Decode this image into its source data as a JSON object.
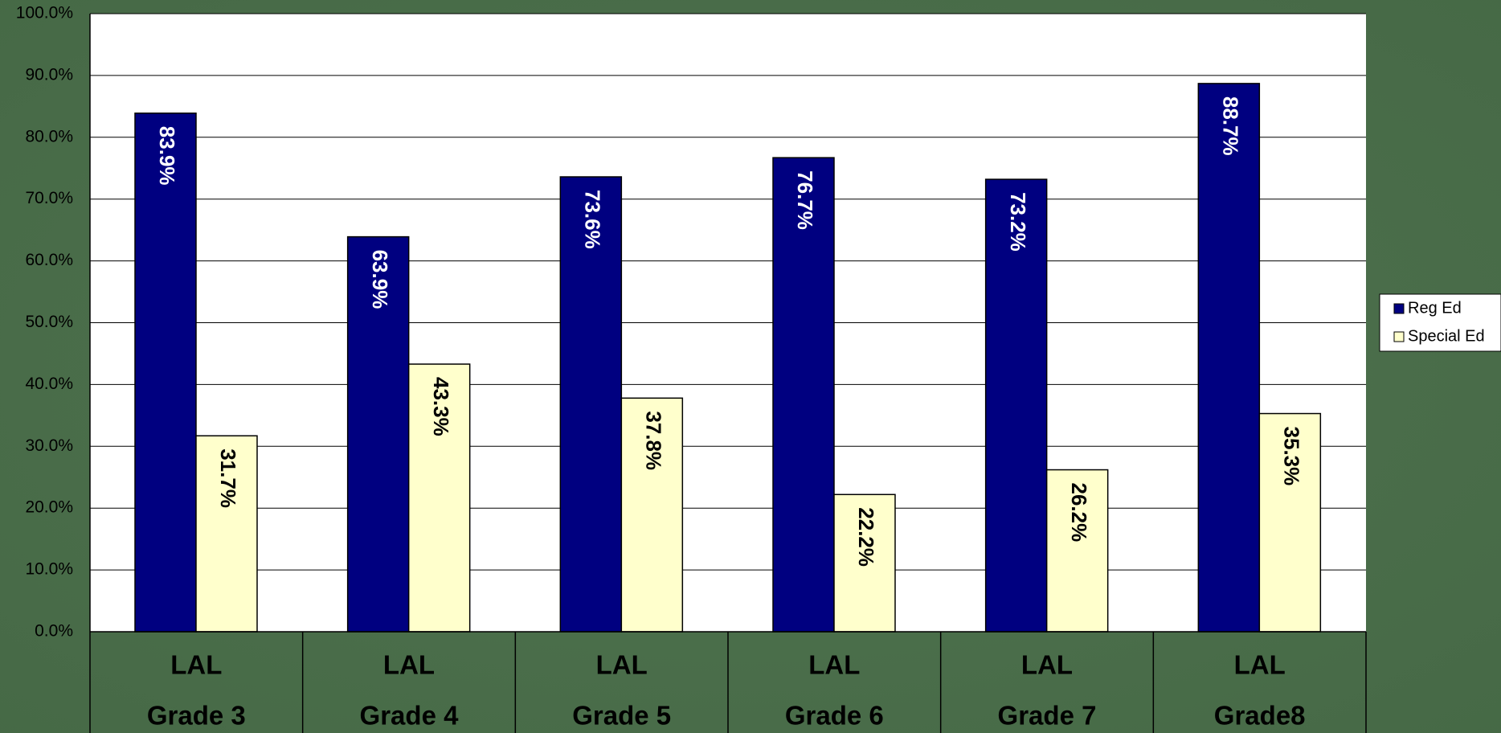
{
  "chart_data": {
    "type": "bar",
    "categories": [
      [
        "LAL",
        "Grade 3"
      ],
      [
        "LAL",
        "Grade 4"
      ],
      [
        "LAL",
        "Grade 5"
      ],
      [
        "LAL",
        "Grade 6"
      ],
      [
        "LAL",
        "Grade 7"
      ],
      [
        "LAL",
        "Grade8"
      ]
    ],
    "series": [
      {
        "name": "Reg Ed",
        "color": "#000080",
        "label_color": "#ffffff",
        "values": [
          83.9,
          63.9,
          73.6,
          76.7,
          73.2,
          88.7
        ],
        "value_labels": [
          "83.9%",
          "63.9%",
          "73.6%",
          "76.7%",
          "73.2%",
          "88.7%"
        ]
      },
      {
        "name": "Special Ed",
        "color": "#ffffcc",
        "label_color": "#000000",
        "values": [
          31.7,
          43.3,
          37.8,
          22.2,
          26.2,
          35.3
        ],
        "value_labels": [
          "31.7%",
          "43.3%",
          "37.8%",
          "22.2%",
          "26.2%",
          "35.3%"
        ]
      }
    ],
    "ylim": [
      0,
      100
    ],
    "yticks": [
      {
        "value": 0,
        "label": "0.0%"
      },
      {
        "value": 10,
        "label": "10.0%"
      },
      {
        "value": 20,
        "label": "20.0%"
      },
      {
        "value": 30,
        "label": "30.0%"
      },
      {
        "value": 40,
        "label": "40.0%"
      },
      {
        "value": 50,
        "label": "50.0%"
      },
      {
        "value": 60,
        "label": "60.0%"
      },
      {
        "value": 70,
        "label": "70.0%"
      },
      {
        "value": 80,
        "label": "80.0%"
      },
      {
        "value": 90,
        "label": "90.0%"
      },
      {
        "value": 100,
        "label": "100.0%"
      }
    ],
    "grid": true,
    "legend": "right"
  }
}
